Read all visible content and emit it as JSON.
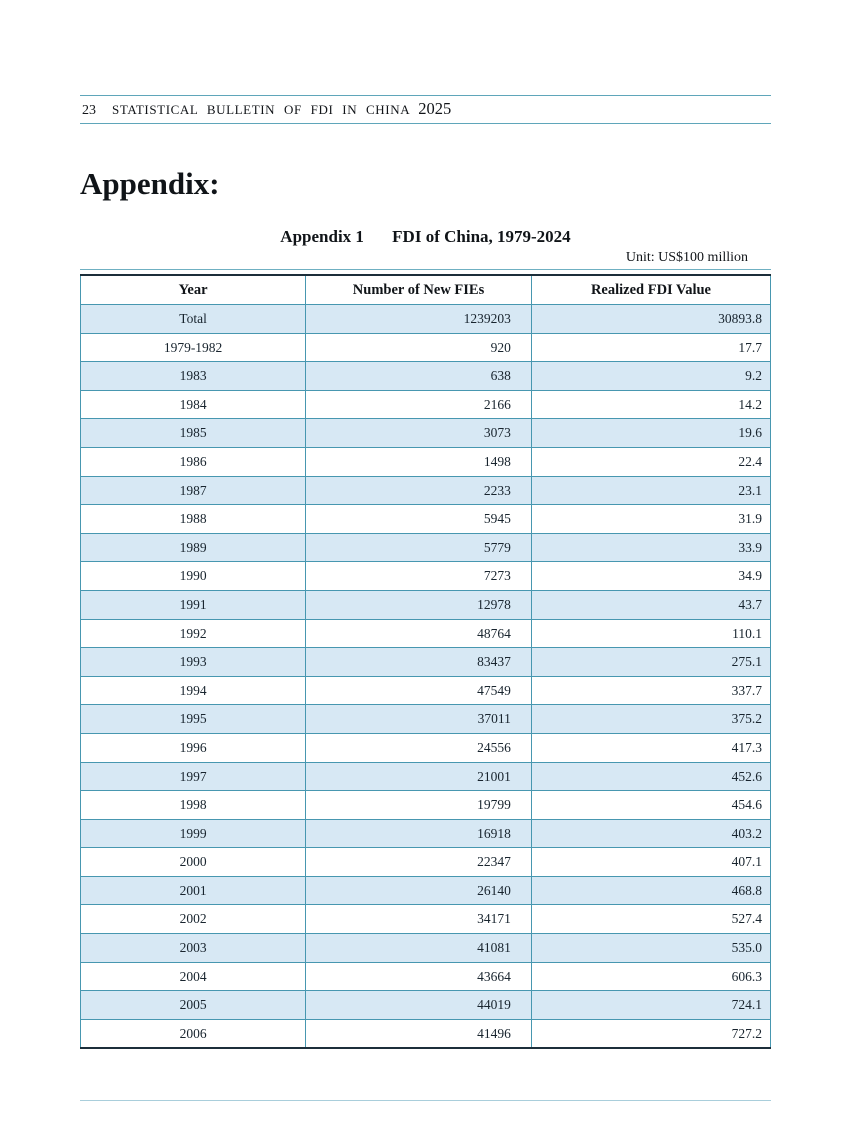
{
  "header": {
    "page_number": "23",
    "title": "STATISTICAL BULLETIN OF FDI IN CHINA",
    "year": "2025"
  },
  "appendix": {
    "heading": "Appendix:"
  },
  "table": {
    "caption_label": "Appendix 1",
    "caption_title": "FDI of China, 1979-2024",
    "unit_note": "Unit: US$100 million",
    "columns": [
      "Year",
      "Number of New FIEs",
      "Realized FDI Value"
    ],
    "rows": [
      {
        "year": "Total",
        "new_fies": "1239203",
        "fdi_value": "30893.8"
      },
      {
        "year": "1979-1982",
        "new_fies": "920",
        "fdi_value": "17.7"
      },
      {
        "year": "1983",
        "new_fies": "638",
        "fdi_value": "9.2"
      },
      {
        "year": "1984",
        "new_fies": "2166",
        "fdi_value": "14.2"
      },
      {
        "year": "1985",
        "new_fies": "3073",
        "fdi_value": "19.6"
      },
      {
        "year": "1986",
        "new_fies": "1498",
        "fdi_value": "22.4"
      },
      {
        "year": "1987",
        "new_fies": "2233",
        "fdi_value": "23.1"
      },
      {
        "year": "1988",
        "new_fies": "5945",
        "fdi_value": "31.9"
      },
      {
        "year": "1989",
        "new_fies": "5779",
        "fdi_value": "33.9"
      },
      {
        "year": "1990",
        "new_fies": "7273",
        "fdi_value": "34.9"
      },
      {
        "year": "1991",
        "new_fies": "12978",
        "fdi_value": "43.7"
      },
      {
        "year": "1992",
        "new_fies": "48764",
        "fdi_value": "110.1"
      },
      {
        "year": "1993",
        "new_fies": "83437",
        "fdi_value": "275.1"
      },
      {
        "year": "1994",
        "new_fies": "47549",
        "fdi_value": "337.7"
      },
      {
        "year": "1995",
        "new_fies": "37011",
        "fdi_value": "375.2"
      },
      {
        "year": "1996",
        "new_fies": "24556",
        "fdi_value": "417.3"
      },
      {
        "year": "1997",
        "new_fies": "21001",
        "fdi_value": "452.6"
      },
      {
        "year": "1998",
        "new_fies": "19799",
        "fdi_value": "454.6"
      },
      {
        "year": "1999",
        "new_fies": "16918",
        "fdi_value": "403.2"
      },
      {
        "year": "2000",
        "new_fies": "22347",
        "fdi_value": "407.1"
      },
      {
        "year": "2001",
        "new_fies": "26140",
        "fdi_value": "468.8"
      },
      {
        "year": "2002",
        "new_fies": "34171",
        "fdi_value": "527.4"
      },
      {
        "year": "2003",
        "new_fies": "41081",
        "fdi_value": "535.0"
      },
      {
        "year": "2004",
        "new_fies": "43664",
        "fdi_value": "606.3"
      },
      {
        "year": "2005",
        "new_fies": "44019",
        "fdi_value": "724.1"
      },
      {
        "year": "2006",
        "new_fies": "41496",
        "fdi_value": "727.2"
      }
    ]
  },
  "colors": {
    "row_shade": "#d7e8f4",
    "table_grid": "#4797b0",
    "table_strong_border": "#1c2e3a",
    "header_rule": "#5fa6ba",
    "footer_rule": "#a9cedb"
  }
}
